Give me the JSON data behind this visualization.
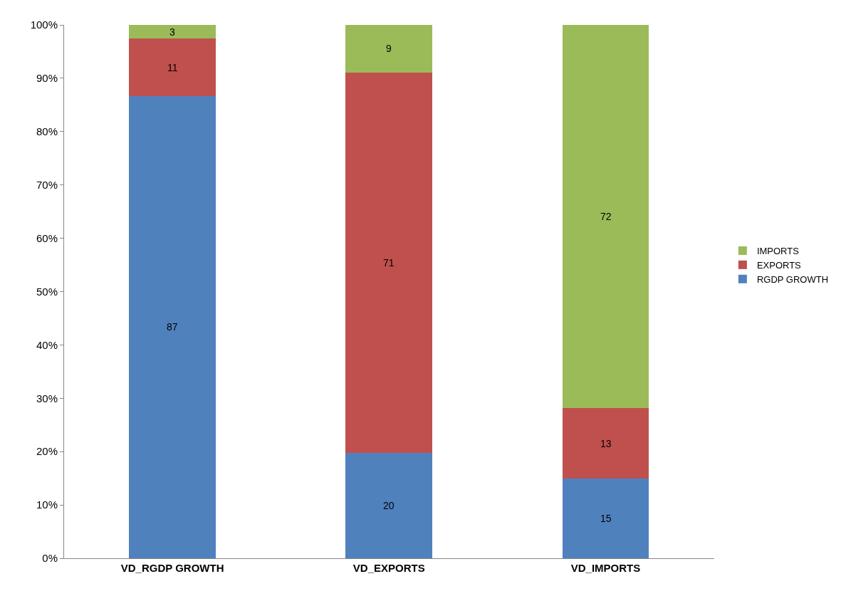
{
  "chart_data": {
    "type": "bar",
    "stacked": true,
    "categories": [
      "VD_RGDP GROWTH",
      "VD_EXPORTS",
      "VD_IMPORTS"
    ],
    "series": [
      {
        "name": "RGDP GROWTH",
        "color": "#4f81bd",
        "values": [
          86.7,
          19.7,
          14.9
        ],
        "value_labels": [
          "87",
          "20",
          "15"
        ]
      },
      {
        "name": "EXPORTS",
        "color": "#c0504d",
        "values": [
          10.7,
          71.4,
          13.3
        ],
        "value_labels": [
          "11",
          "71",
          "13"
        ]
      },
      {
        "name": "IMPORTS",
        "color": "#9bbb59",
        "values": [
          2.6,
          8.9,
          71.8
        ],
        "value_labels": [
          "3",
          "9",
          "72"
        ]
      }
    ],
    "ylim": [
      0,
      100
    ],
    "yticks": [
      {
        "value": 0,
        "label": "0%"
      },
      {
        "value": 10,
        "label": "10%"
      },
      {
        "value": 20,
        "label": "20%"
      },
      {
        "value": 30,
        "label": "30%"
      },
      {
        "value": 40,
        "label": "40%"
      },
      {
        "value": 50,
        "label": "50%"
      },
      {
        "value": 60,
        "label": "60%"
      },
      {
        "value": 70,
        "label": "70%"
      },
      {
        "value": 80,
        "label": "80%"
      },
      {
        "value": 90,
        "label": "90%"
      },
      {
        "value": 100,
        "label": "100%"
      }
    ],
    "grid": false,
    "legend": "right"
  }
}
